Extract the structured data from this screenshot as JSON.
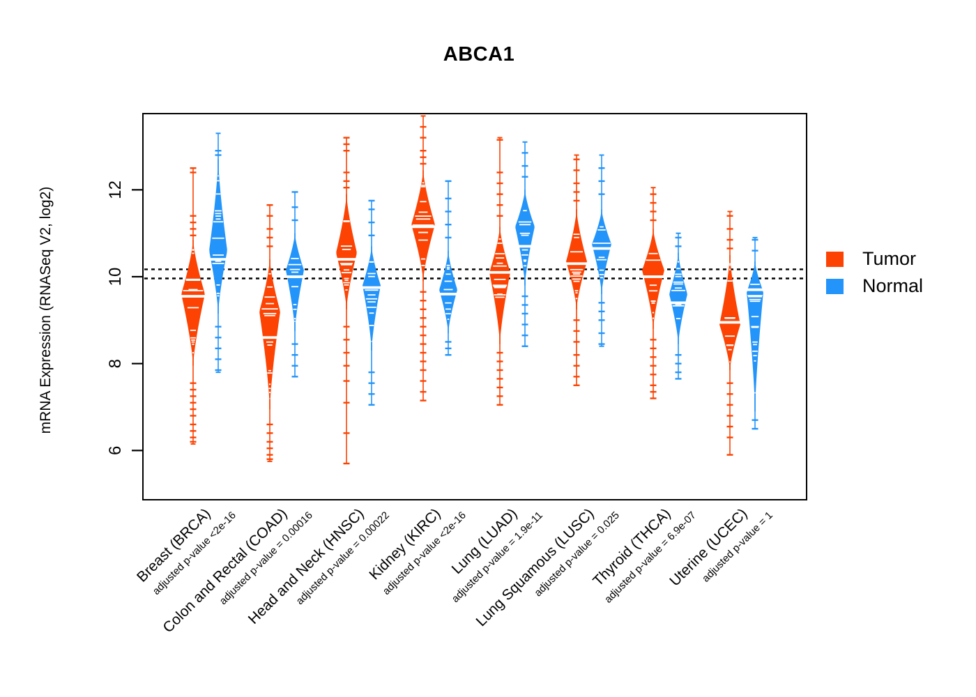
{
  "title": "ABCA1",
  "legend": {
    "items": [
      {
        "label": "Tumor"
      },
      {
        "label": "Normal"
      }
    ]
  },
  "chart_data": {
    "type": "violin",
    "title": "ABCA1",
    "ylabel": "mRNA Expression (RNASeq V2, log2)",
    "yticks": [
      6,
      8,
      10,
      12
    ],
    "ylim": [
      4.9,
      13.9
    ],
    "grid": false,
    "legend_position": "right",
    "reference_lines": [
      10.17,
      9.96
    ],
    "series_colors": {
      "Tumor": "#FC4303",
      "Normal": "#2394F9"
    },
    "groups": [
      {
        "label": "Breast (BRCA)",
        "pvalue_label": "adjusted p-value <2e-16",
        "tumor": {
          "median": 9.55,
          "body": [
            7.95,
            10.85
          ],
          "peak": 9.6,
          "max_halfwidth": 17,
          "spine": [
            6.15,
            12.5
          ],
          "outliers_above": [
            10.95,
            11.1,
            11.25,
            11.4,
            12.4,
            12.5
          ],
          "outliers_below": [
            7.55,
            7.4,
            7.25,
            7.1,
            6.95,
            6.8,
            6.6,
            6.45,
            6.3,
            6.2
          ]
        },
        "normal": {
          "median": 10.4,
          "body": [
            9.15,
            12.7
          ],
          "peak": 10.6,
          "max_halfwidth": 13,
          "spine": [
            7.8,
            13.3
          ],
          "outliers_above": [
            12.8,
            12.9
          ],
          "outliers_below": [
            8.85,
            8.6,
            8.35,
            8.1,
            7.85
          ]
        }
      },
      {
        "label": "Colon and Rectal (COAD)",
        "pvalue_label": "adjusted p-value = 0.00016",
        "tumor": {
          "median": 8.6,
          "body": [
            6.95,
            10.4
          ],
          "peak": 9.2,
          "max_halfwidth": 15,
          "spine": [
            5.75,
            11.65
          ],
          "outliers_above": [
            10.7,
            10.9,
            11.1,
            11.4,
            11.65
          ],
          "outliers_below": [
            6.6,
            6.4,
            6.2,
            6.05,
            5.9,
            5.8
          ]
        },
        "normal": {
          "median": 10.0,
          "body": [
            8.75,
            11.0
          ],
          "peak": 10.15,
          "max_halfwidth": 13,
          "spine": [
            7.7,
            11.95
          ],
          "outliers_above": [
            11.3,
            11.6,
            11.95
          ],
          "outliers_below": [
            8.45,
            8.2,
            7.95,
            7.7
          ]
        }
      },
      {
        "label": "Head and Neck (HNSC)",
        "pvalue_label": "adjusted p-value = 0.00022",
        "tumor": {
          "median": 10.4,
          "body": [
            9.25,
            11.9
          ],
          "peak": 10.55,
          "max_halfwidth": 15,
          "spine": [
            5.7,
            13.2
          ],
          "outliers_above": [
            12.05,
            12.2,
            12.4,
            12.9,
            13.05,
            13.2
          ],
          "outliers_below": [
            8.85,
            8.55,
            8.25,
            7.95,
            7.6,
            7.1,
            6.4,
            5.7
          ]
        },
        "normal": {
          "median": 9.75,
          "body": [
            8.3,
            10.7
          ],
          "peak": 9.8,
          "max_halfwidth": 13,
          "spine": [
            7.05,
            11.75
          ],
          "outliers_above": [
            10.95,
            11.25,
            11.55,
            11.75
          ],
          "outliers_below": [
            7.8,
            7.55,
            7.3,
            7.05
          ]
        }
      },
      {
        "label": "Kidney (KIRC)",
        "pvalue_label": "adjusted p-value <2e-16",
        "tumor": {
          "median": 11.15,
          "body": [
            9.9,
            12.45
          ],
          "peak": 11.2,
          "max_halfwidth": 17,
          "spine": [
            7.15,
            13.7
          ],
          "outliers_above": [
            12.6,
            12.75,
            12.9,
            13.2,
            13.45
          ],
          "outliers_below": [
            9.65,
            9.45,
            9.25,
            9.05,
            8.85,
            8.65,
            8.45,
            8.25,
            8.05,
            7.85,
            7.6,
            7.35,
            7.15
          ]
        },
        "normal": {
          "median": 9.6,
          "body": [
            8.7,
            10.6
          ],
          "peak": 9.7,
          "max_halfwidth": 13,
          "spine": [
            8.2,
            12.2
          ],
          "outliers_above": [
            10.9,
            11.2,
            11.5,
            11.8,
            12.2
          ],
          "outliers_below": [
            8.5,
            8.35,
            8.2
          ]
        }
      },
      {
        "label": "Lung (LUAD)",
        "pvalue_label": "adjusted p-value = 1.9e-11",
        "tumor": {
          "median": 10.1,
          "body": [
            8.45,
            11.15
          ],
          "peak": 10.1,
          "max_halfwidth": 15,
          "spine": [
            7.05,
            13.2
          ],
          "outliers_above": [
            11.4,
            11.65,
            11.9,
            12.15,
            12.4,
            13.15
          ],
          "outliers_below": [
            8.25,
            8.05,
            7.85,
            7.65,
            7.45,
            7.25,
            7.05
          ]
        },
        "normal": {
          "median": 10.7,
          "body": [
            9.8,
            12.0
          ],
          "peak": 11.15,
          "max_halfwidth": 14,
          "spine": [
            8.4,
            13.1
          ],
          "outliers_above": [
            12.3,
            12.55,
            12.85
          ],
          "outliers_below": [
            9.55,
            9.35,
            9.15,
            8.9,
            8.65,
            8.4
          ]
        }
      },
      {
        "label": "Lung Squamous (LUSC)",
        "pvalue_label": "adjusted p-value = 0.025",
        "tumor": {
          "median": 10.3,
          "body": [
            9.25,
            11.55
          ],
          "peak": 10.35,
          "max_halfwidth": 15,
          "spine": [
            7.5,
            12.8
          ],
          "outliers_above": [
            11.75,
            11.95,
            12.15,
            12.45,
            12.7
          ],
          "outliers_below": [
            9.0,
            8.75,
            8.5,
            8.2,
            7.95,
            7.7,
            7.5
          ]
        },
        "normal": {
          "median": 10.65,
          "body": [
            9.6,
            11.55
          ],
          "peak": 10.75,
          "max_halfwidth": 14,
          "spine": [
            8.4,
            12.8
          ],
          "outliers_above": [
            11.9,
            12.2,
            12.5
          ],
          "outliers_below": [
            9.4,
            9.2,
            9.0,
            8.7,
            8.45
          ]
        }
      },
      {
        "label": "Thyroid (THCA)",
        "pvalue_label": "adjusted p-value = 6.9e-07",
        "tumor": {
          "median": 10.0,
          "body": [
            8.8,
            11.1
          ],
          "peak": 10.15,
          "max_halfwidth": 16,
          "spine": [
            7.2,
            12.05
          ],
          "outliers_above": [
            11.3,
            11.5,
            11.7,
            11.9
          ],
          "outliers_below": [
            8.55,
            8.35,
            8.15,
            7.95,
            7.75,
            7.5,
            7.35,
            7.2
          ]
        },
        "normal": {
          "median": 9.4,
          "body": [
            8.45,
            10.55
          ],
          "peak": 9.6,
          "max_halfwidth": 13,
          "spine": [
            7.65,
            11.0
          ],
          "outliers_above": [
            10.7,
            10.9
          ],
          "outliers_below": [
            8.2,
            8.0,
            7.8,
            7.65
          ]
        }
      },
      {
        "label": "Uterine (UCEC)",
        "pvalue_label": "adjusted p-value = 1",
        "tumor": {
          "median": 8.95,
          "body": [
            7.85,
            10.5
          ],
          "peak": 8.9,
          "max_halfwidth": 15,
          "spine": [
            5.9,
            11.5
          ],
          "outliers_above": [
            10.65,
            10.85,
            11.1,
            11.4
          ],
          "outliers_below": [
            7.55,
            7.3,
            7.05,
            6.8,
            6.55,
            6.3,
            5.9
          ]
        },
        "normal": {
          "median": 9.7,
          "body": [
            6.9,
            10.35
          ],
          "peak": 9.65,
          "max_halfwidth": 12,
          "spine": [
            6.5,
            10.9
          ],
          "outliers_above": [
            10.6,
            10.85
          ],
          "outliers_below": [
            6.7,
            6.5
          ]
        }
      }
    ]
  }
}
